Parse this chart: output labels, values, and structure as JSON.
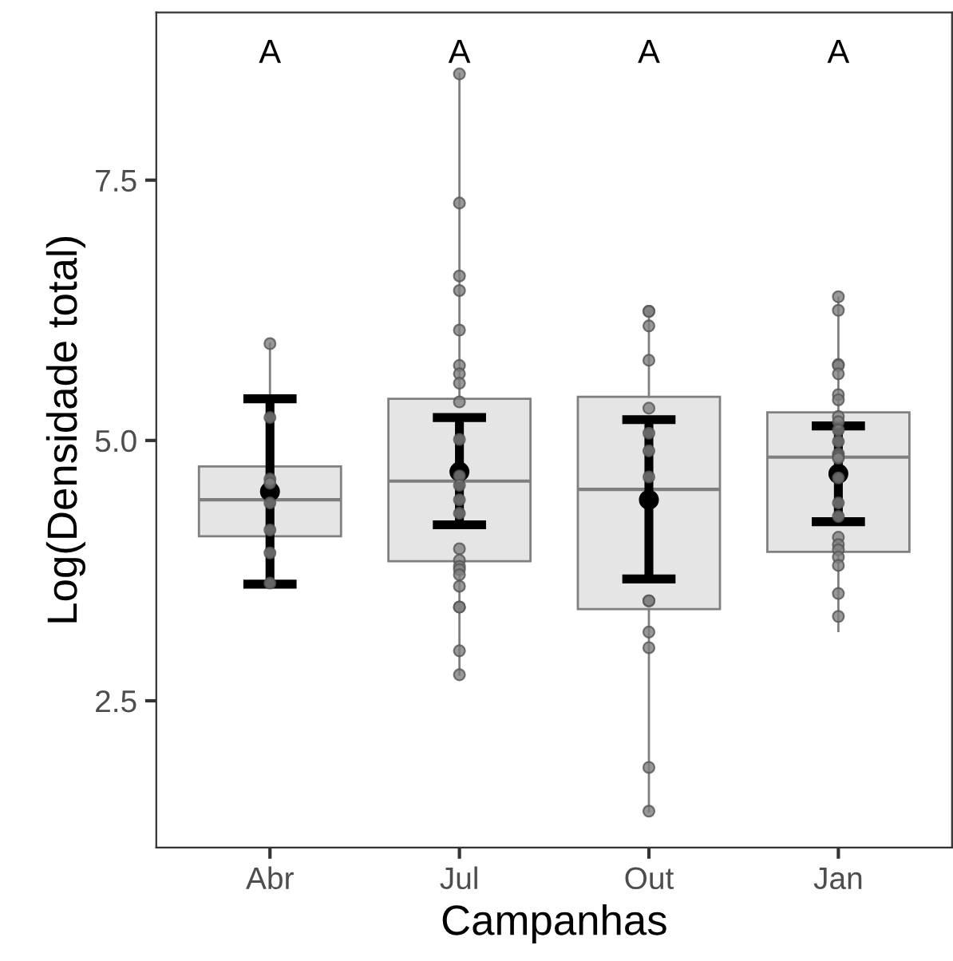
{
  "chart_data": {
    "type": "box",
    "xlabel": "Campanhas",
    "ylabel": "Log(Densidade total)",
    "categories": [
      "Abr",
      "Jul",
      "Out",
      "Jan"
    ],
    "ylim": [
      1.09,
      9.11
    ],
    "yticks": [
      2.5,
      {
        "value": 5,
        "label": "5.0"
      },
      7.5
    ],
    "grid": false,
    "series": [
      {
        "color": "#e5e5e5",
        "boxes": [
          {
            "low": 3.63,
            "q1": 4.08,
            "median": 4.43,
            "q3": 4.75,
            "high": 5.93
          },
          {
            "low": 2.75,
            "q1": 3.84,
            "median": 4.61,
            "q3": 5.4,
            "high": 8.52
          },
          {
            "low": 1.44,
            "q1": 3.38,
            "median": 4.53,
            "q3": 5.42,
            "high": 6.24
          },
          {
            "low": 3.17,
            "q1": 3.93,
            "median": 4.84,
            "q3": 5.27,
            "high": 6.37
          }
        ]
      },
      {
        "type": "scatter",
        "color": "#808080",
        "x": [
          "Abr",
          "Abr",
          "Abr",
          "Abr",
          "Abr",
          "Abr",
          "Abr",
          "Abr",
          "Jul",
          "Jul",
          "Jul",
          "Jul",
          "Jul",
          "Jul",
          "Jul",
          "Jul",
          "Jul",
          "Jul",
          "Jul",
          "Jul",
          "Jul",
          "Jul",
          "Jul",
          "Jul",
          "Jul",
          "Jul",
          "Jul",
          "Jul",
          "Jul",
          "Jul",
          "Jul",
          "Jul",
          "Out",
          "Out",
          "Out",
          "Out",
          "Out",
          "Out",
          "Out",
          "Out",
          "Out",
          "Out",
          "Out",
          "Out",
          "Out",
          "Out",
          "Jan",
          "Jan",
          "Jan",
          "Jan",
          "Jan",
          "Jan",
          "Jan",
          "Jan",
          "Jan",
          "Jan",
          "Jan",
          "Jan",
          "Jan",
          "Jan",
          "Jan",
          "Jan",
          "Jan",
          "Jan",
          "Jan",
          "Jan",
          "Jan",
          "Jan",
          "Jan",
          "Jan"
        ],
        "values": [
          5.93,
          5.22,
          4.63,
          4.59,
          4.4,
          4.14,
          3.92,
          3.63,
          8.52,
          7.28,
          6.58,
          6.44,
          6.06,
          5.72,
          5.64,
          5.55,
          5.37,
          5.01,
          4.66,
          4.57,
          4.43,
          4.3,
          3.96,
          3.85,
          3.79,
          3.76,
          3.71,
          3.6,
          3.4,
          3.4,
          2.98,
          2.75,
          6.24,
          6.24,
          6.1,
          5.77,
          5.31,
          5.07,
          4.9,
          4.65,
          3.46,
          3.46,
          3.16,
          3.01,
          1.86,
          1.44,
          6.38,
          6.25,
          5.73,
          5.72,
          5.64,
          5.44,
          5.39,
          5.23,
          5.18,
          5.1,
          4.99,
          4.87,
          4.85,
          4.83,
          4.64,
          4.4,
          4.27,
          4.07,
          4.0,
          3.95,
          3.88,
          3.8,
          3.53,
          3.31
        ]
      },
      {
        "type": "scatter",
        "color": "#000000",
        "x": [
          "Abr",
          "Jul",
          "Out",
          "Jan"
        ],
        "values": [
          4.51,
          4.7,
          4.43,
          4.68
        ],
        "errors": [
          [
            3.62,
            5.4
          ],
          [
            4.19,
            5.22
          ],
          [
            3.67,
            5.2
          ],
          [
            4.22,
            5.14
          ]
        ]
      }
    ],
    "annotations": [
      "A",
      "A",
      "A",
      "A"
    ]
  }
}
